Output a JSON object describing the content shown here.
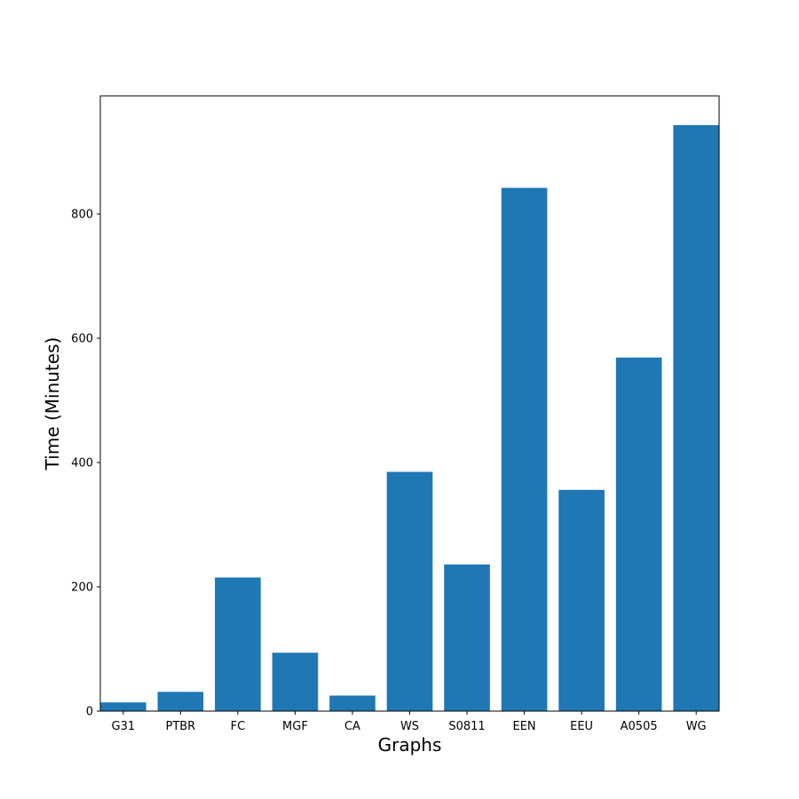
{
  "chart_data": {
    "type": "bar",
    "categories": [
      "G31",
      "PTBR",
      "FC",
      "MGF",
      "CA",
      "WS",
      "S0811",
      "EEN",
      "EEU",
      "A0505",
      "WG"
    ],
    "values": [
      14,
      31,
      215,
      94,
      25,
      385,
      236,
      842,
      356,
      569,
      943
    ],
    "bar_color": "#1f77b4",
    "xlabel": "Graphs",
    "ylabel": "Time (Minutes)",
    "ylim": [
      0,
      990
    ],
    "yticks": [
      0,
      200,
      400,
      600,
      800
    ],
    "grid": false,
    "legend": "none"
  }
}
